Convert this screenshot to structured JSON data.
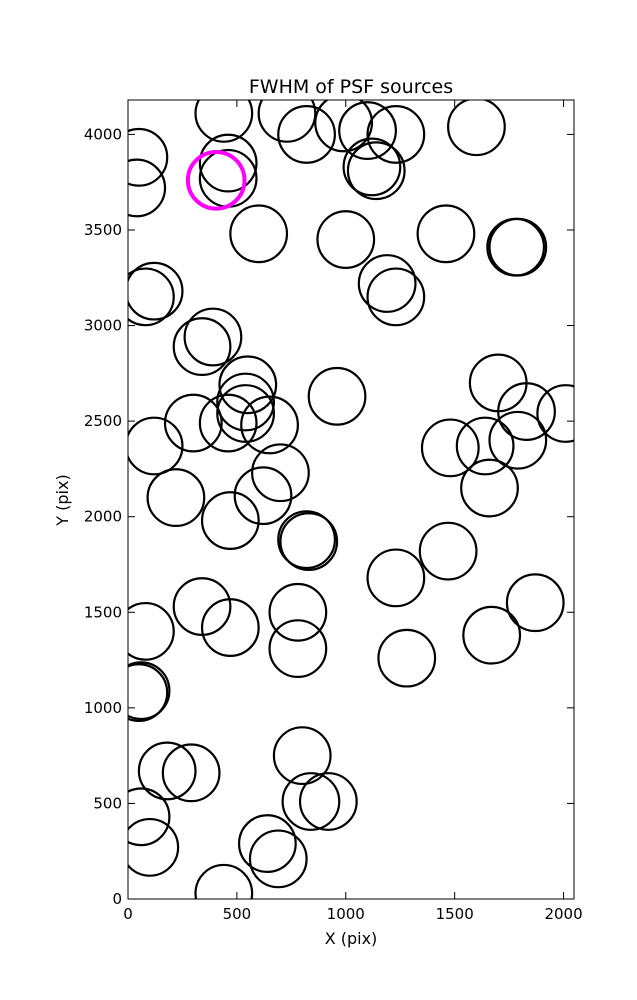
{
  "chart_data": {
    "type": "scatter",
    "title": "FWHM of PSF sources",
    "xlabel": "X (pix)",
    "ylabel": "Y (pix)",
    "xlim": [
      0,
      2048
    ],
    "ylim": [
      0,
      4180
    ],
    "xticks": [
      0,
      500,
      1000,
      1500,
      2000
    ],
    "yticks": [
      0,
      500,
      1000,
      1500,
      2000,
      2500,
      3000,
      3500,
      4000
    ],
    "grid": false,
    "legend": "none",
    "marker_color": "#000000",
    "highlight_color": "#ff00ff",
    "circle_radius_data_x": 130,
    "points": [
      {
        "x": 50,
        "y": 3880
      },
      {
        "x": 40,
        "y": 3720
      },
      {
        "x": 440,
        "y": 4110
      },
      {
        "x": 730,
        "y": 4110
      },
      {
        "x": 820,
        "y": 4000
      },
      {
        "x": 990,
        "y": 4060
      },
      {
        "x": 1100,
        "y": 4020
      },
      {
        "x": 1230,
        "y": 4000
      },
      {
        "x": 1600,
        "y": 4040
      },
      {
        "x": 460,
        "y": 3850
      },
      {
        "x": 460,
        "y": 3770
      },
      {
        "x": 1120,
        "y": 3830
      },
      {
        "x": 1140,
        "y": 3810
      },
      {
        "x": 600,
        "y": 3480
      },
      {
        "x": 1000,
        "y": 3450
      },
      {
        "x": 1460,
        "y": 3480
      },
      {
        "x": 1780,
        "y": 3410
      },
      {
        "x": 1790,
        "y": 3410
      },
      {
        "x": 120,
        "y": 3180
      },
      {
        "x": 80,
        "y": 3150
      },
      {
        "x": 1190,
        "y": 3220
      },
      {
        "x": 1230,
        "y": 3150
      },
      {
        "x": 390,
        "y": 2940
      },
      {
        "x": 340,
        "y": 2890
      },
      {
        "x": 550,
        "y": 2690
      },
      {
        "x": 540,
        "y": 2600
      },
      {
        "x": 540,
        "y": 2540
      },
      {
        "x": 960,
        "y": 2630
      },
      {
        "x": 1700,
        "y": 2700
      },
      {
        "x": 1830,
        "y": 2550
      },
      {
        "x": 2010,
        "y": 2540
      },
      {
        "x": 300,
        "y": 2490
      },
      {
        "x": 460,
        "y": 2490
      },
      {
        "x": 650,
        "y": 2480
      },
      {
        "x": 120,
        "y": 2370
      },
      {
        "x": 1480,
        "y": 2360
      },
      {
        "x": 1640,
        "y": 2370
      },
      {
        "x": 1790,
        "y": 2400
      },
      {
        "x": 700,
        "y": 2230
      },
      {
        "x": 1660,
        "y": 2150
      },
      {
        "x": 220,
        "y": 2100
      },
      {
        "x": 620,
        "y": 2110
      },
      {
        "x": 470,
        "y": 1980
      },
      {
        "x": 820,
        "y": 1880
      },
      {
        "x": 830,
        "y": 1870
      },
      {
        "x": 1470,
        "y": 1820
      },
      {
        "x": 1230,
        "y": 1680
      },
      {
        "x": 340,
        "y": 1530
      },
      {
        "x": 780,
        "y": 1500
      },
      {
        "x": 1870,
        "y": 1550
      },
      {
        "x": 470,
        "y": 1420
      },
      {
        "x": 80,
        "y": 1400
      },
      {
        "x": 1670,
        "y": 1380
      },
      {
        "x": 780,
        "y": 1310
      },
      {
        "x": 1280,
        "y": 1260
      },
      {
        "x": 50,
        "y": 1080
      },
      {
        "x": 60,
        "y": 1090
      },
      {
        "x": 800,
        "y": 750
      },
      {
        "x": 180,
        "y": 670
      },
      {
        "x": 290,
        "y": 660
      },
      {
        "x": 60,
        "y": 430
      },
      {
        "x": 840,
        "y": 510
      },
      {
        "x": 920,
        "y": 510
      },
      {
        "x": 100,
        "y": 270
      },
      {
        "x": 640,
        "y": 290
      },
      {
        "x": 690,
        "y": 210
      },
      {
        "x": 440,
        "y": 30
      }
    ],
    "highlight_points": [
      {
        "x": 405,
        "y": 3760
      }
    ]
  }
}
